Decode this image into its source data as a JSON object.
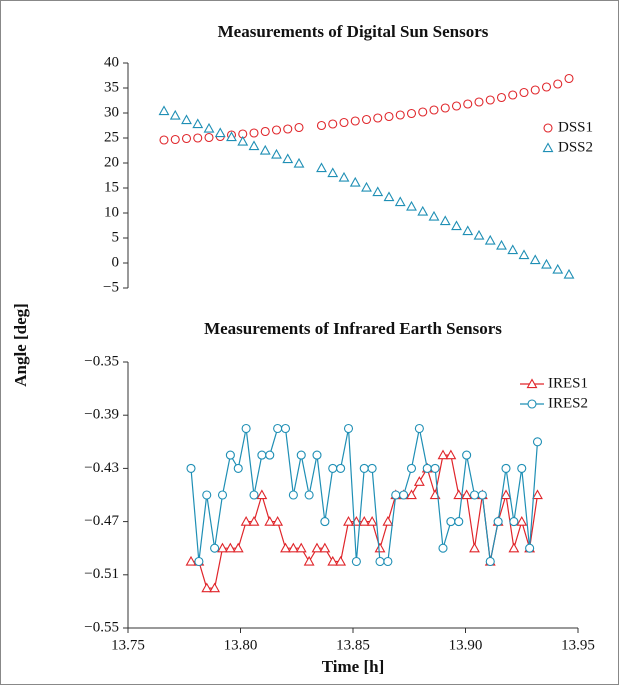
{
  "ylabel": "Angle [deg]",
  "xlabel": "Time [h]",
  "chart_data": [
    {
      "type": "scatter",
      "title": "Measurements of Digital Sun Sensors",
      "x": [
        13.766,
        13.771,
        13.776,
        13.781,
        13.786,
        13.791,
        13.796,
        13.801,
        13.806,
        13.811,
        13.816,
        13.821,
        13.826,
        13.836,
        13.841,
        13.846,
        13.851,
        13.856,
        13.861,
        13.866,
        13.871,
        13.876,
        13.881,
        13.886,
        13.891,
        13.896,
        13.901,
        13.906,
        13.911,
        13.916,
        13.921,
        13.926,
        13.931,
        13.936,
        13.941,
        13.946
      ],
      "series": [
        {
          "name": "DSS1",
          "color": "#e0262b",
          "marker": "circle",
          "values": [
            24.6,
            24.7,
            24.9,
            25.0,
            25.1,
            25.3,
            25.6,
            25.8,
            26.0,
            26.3,
            26.6,
            26.8,
            27.1,
            27.5,
            27.8,
            28.1,
            28.4,
            28.7,
            29.0,
            29.3,
            29.6,
            29.9,
            30.2,
            30.6,
            31.0,
            31.4,
            31.8,
            32.2,
            32.6,
            33.1,
            33.6,
            34.1,
            34.6,
            35.2,
            35.8,
            36.9
          ]
        },
        {
          "name": "DSS2",
          "color": "#1f8fb5",
          "marker": "triangle",
          "values": [
            30.4,
            29.5,
            28.6,
            27.8,
            26.9,
            26.0,
            25.2,
            24.3,
            23.4,
            22.5,
            21.7,
            20.8,
            19.9,
            19.0,
            18.0,
            17.1,
            16.1,
            15.1,
            14.2,
            13.2,
            12.2,
            11.3,
            10.3,
            9.3,
            8.4,
            7.4,
            6.4,
            5.5,
            4.5,
            3.5,
            2.6,
            1.6,
            0.6,
            -0.3,
            -1.3,
            -2.3
          ]
        }
      ],
      "xlim": [
        13.75,
        13.95
      ],
      "ylim": [
        -5,
        40
      ],
      "yticks": [
        {
          "value": -5,
          "label": "−5"
        },
        0,
        5,
        10,
        15,
        20,
        25,
        30,
        35,
        40
      ],
      "legend": "right"
    },
    {
      "type": "line",
      "title": "Measurements of Infrared Earth Sensors",
      "x": [
        13.778,
        13.7815,
        13.785,
        13.7885,
        13.792,
        13.7955,
        13.799,
        13.8025,
        13.806,
        13.8095,
        13.813,
        13.8165,
        13.82,
        13.8235,
        13.827,
        13.8305,
        13.834,
        13.8375,
        13.841,
        13.8445,
        13.848,
        13.8515,
        13.855,
        13.8585,
        13.862,
        13.8655,
        13.869,
        13.8725,
        13.876,
        13.8795,
        13.883,
        13.8865,
        13.89,
        13.8935,
        13.897,
        13.9005,
        13.904,
        13.9075,
        13.911,
        13.9145,
        13.918,
        13.9215,
        13.925,
        13.9285,
        13.932
      ],
      "series": [
        {
          "name": "IRES1",
          "color": "#e0262b",
          "marker": "triangle",
          "values": [
            -0.5,
            -0.5,
            -0.52,
            -0.52,
            -0.49,
            -0.49,
            -0.49,
            -0.47,
            -0.47,
            -0.45,
            -0.47,
            -0.47,
            -0.49,
            -0.49,
            -0.49,
            -0.5,
            -0.49,
            -0.49,
            -0.5,
            -0.5,
            -0.47,
            -0.47,
            -0.47,
            -0.47,
            -0.49,
            -0.47,
            -0.45,
            -0.45,
            -0.45,
            -0.44,
            -0.43,
            -0.45,
            -0.42,
            -0.42,
            -0.45,
            -0.45,
            -0.49,
            -0.45,
            -0.5,
            -0.47,
            -0.45,
            -0.49,
            -0.47,
            -0.49,
            -0.45
          ]
        },
        {
          "name": "IRES2",
          "color": "#1f8fb5",
          "marker": "circle",
          "values": [
            -0.43,
            -0.5,
            -0.45,
            -0.49,
            -0.45,
            -0.42,
            -0.43,
            -0.4,
            -0.45,
            -0.42,
            -0.42,
            -0.4,
            -0.4,
            -0.45,
            -0.42,
            -0.45,
            -0.42,
            -0.47,
            -0.43,
            -0.43,
            -0.4,
            -0.5,
            -0.43,
            -0.43,
            -0.5,
            -0.5,
            -0.45,
            -0.45,
            -0.43,
            -0.4,
            -0.43,
            -0.43,
            -0.49,
            -0.47,
            -0.47,
            -0.42,
            -0.45,
            -0.45,
            -0.5,
            -0.47,
            -0.43,
            -0.47,
            -0.43,
            -0.49,
            -0.41
          ]
        }
      ],
      "xlim": [
        13.75,
        13.95
      ],
      "ylim": [
        -0.55,
        -0.35
      ],
      "xticks": [
        13.75,
        {
          "value": 13.8,
          "label": "13.80"
        },
        13.85,
        {
          "value": 13.9,
          "label": "13.90"
        },
        13.95
      ],
      "yticks": [
        {
          "value": -0.55,
          "label": "−0.55"
        },
        {
          "value": -0.51,
          "label": "−0.51"
        },
        {
          "value": -0.47,
          "label": "−0.47"
        },
        {
          "value": -0.43,
          "label": "−0.43"
        },
        {
          "value": -0.39,
          "label": "−0.39"
        },
        {
          "value": -0.35,
          "label": "−0.35"
        }
      ],
      "legend": "upper right"
    }
  ]
}
